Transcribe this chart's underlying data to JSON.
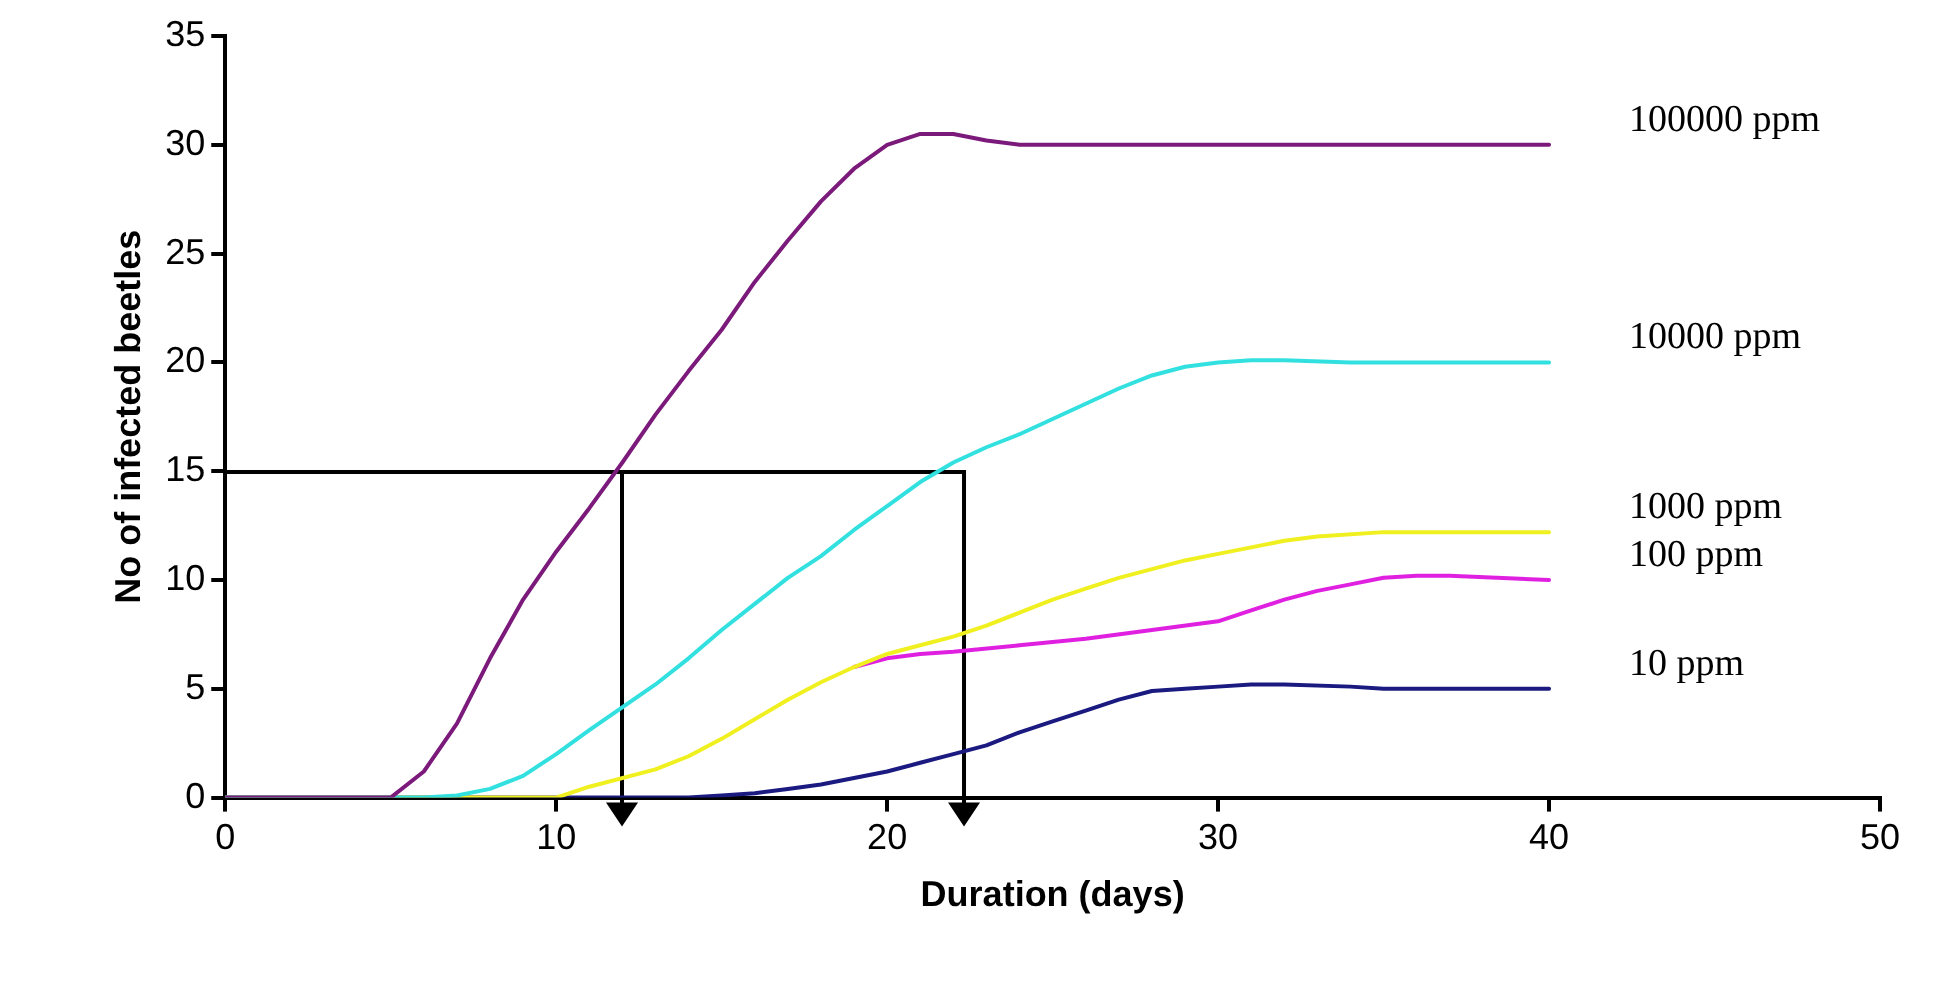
{
  "chart_data": {
    "type": "line",
    "xlabel": "Duration (days)",
    "ylabel": "No of infected beetles",
    "xlim": [
      0,
      50
    ],
    "xticks": [
      0,
      10,
      20,
      30,
      40,
      50
    ],
    "ylim": [
      0,
      35
    ],
    "yticks": [
      0,
      5,
      10,
      15,
      20,
      25,
      30,
      35
    ],
    "grid": false,
    "legend": false,
    "marker": "none",
    "series": [
      {
        "name": "100000 ppm",
        "color": "#7b1a7b",
        "x": [
          0,
          5,
          6,
          7,
          8,
          9,
          10,
          11,
          12,
          13,
          14,
          15,
          16,
          17,
          18,
          19,
          20,
          21,
          22,
          23,
          24,
          25,
          40
        ],
        "values": [
          0,
          0,
          1.2,
          3.4,
          6.4,
          9.1,
          11.3,
          13.3,
          15.4,
          17.6,
          19.6,
          21.5,
          23.7,
          25.6,
          27.4,
          28.9,
          30,
          30.5,
          30.5,
          30.2,
          30,
          30,
          30
        ]
      },
      {
        "name": "10000 ppm",
        "color": "#33e0e0",
        "x": [
          0,
          6,
          7,
          8,
          9,
          10,
          11,
          13,
          14,
          15,
          16,
          17,
          18,
          19,
          20,
          21,
          22,
          23,
          24,
          25,
          26,
          27,
          28,
          29,
          30,
          31,
          32,
          34,
          40
        ],
        "values": [
          0,
          0,
          0.1,
          0.4,
          1,
          2,
          3.1,
          5.2,
          6.4,
          7.7,
          8.9,
          10.1,
          11.1,
          12.3,
          13.4,
          14.5,
          15.4,
          16.1,
          16.7,
          17.4,
          18.1,
          18.8,
          19.4,
          19.8,
          20,
          20.1,
          20.1,
          20,
          20
        ]
      },
      {
        "name": "1000 ppm",
        "color": "#f0f020",
        "x": [
          0,
          10,
          11,
          13,
          14,
          15,
          16,
          17,
          18,
          19,
          20,
          21,
          22,
          23,
          24,
          25,
          26,
          27,
          28,
          29,
          30,
          31,
          32,
          33,
          35,
          40
        ],
        "values": [
          0,
          0,
          0.5,
          1.3,
          1.9,
          2.7,
          3.6,
          4.5,
          5.3,
          6,
          6.6,
          7,
          7.4,
          7.9,
          8.5,
          9.1,
          9.6,
          10.1,
          10.5,
          10.9,
          11.2,
          11.5,
          11.8,
          12,
          12.2,
          12.2
        ]
      },
      {
        "name": "100 ppm",
        "color": "#e020e0",
        "x": [
          19,
          20,
          21,
          22,
          24,
          26,
          28,
          30,
          31,
          32,
          33,
          34,
          35,
          36,
          37,
          40
        ],
        "values": [
          6,
          6.4,
          6.6,
          6.7,
          7,
          7.3,
          7.7,
          8.1,
          8.6,
          9.1,
          9.5,
          9.8,
          10.1,
          10.2,
          10.2,
          10
        ]
      },
      {
        "name": "10 ppm",
        "color": "#1a1a80",
        "x": [
          0,
          14,
          15,
          16,
          17,
          18,
          19,
          20,
          21,
          22,
          23,
          24,
          25,
          26,
          27,
          28,
          29,
          30,
          31,
          32,
          34,
          35,
          40
        ],
        "values": [
          0,
          0,
          0.1,
          0.2,
          0.4,
          0.6,
          0.9,
          1.2,
          1.6,
          2,
          2.4,
          3,
          3.5,
          4,
          4.5,
          4.9,
          5,
          5.1,
          5.2,
          5.2,
          5.1,
          5,
          5
        ]
      }
    ]
  }
}
